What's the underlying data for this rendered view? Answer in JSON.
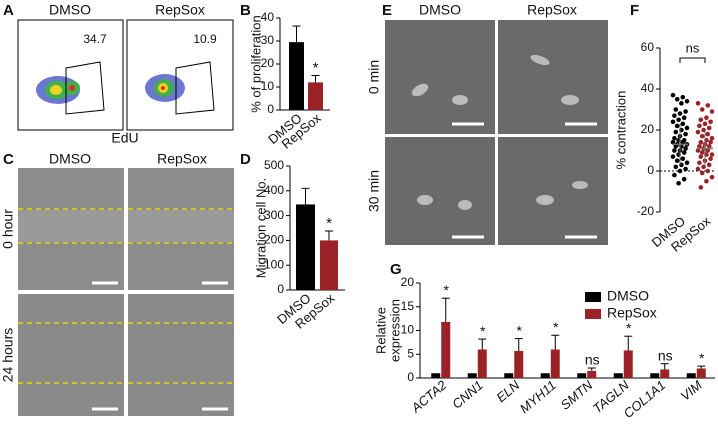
{
  "image_panels": {
    "A": {
      "label": "A",
      "columns": [
        "DMSO",
        "RepSox"
      ],
      "gate_values": [
        34.7,
        10.9
      ],
      "x_label": "EdU"
    },
    "C": {
      "label": "C",
      "columns": [
        "DMSO",
        "RepSox"
      ],
      "rows": [
        "0 hour",
        "24 hours"
      ]
    },
    "E": {
      "label": "E",
      "columns": [
        "DMSO",
        "RepSox"
      ],
      "rows": [
        "0 min",
        "30 min"
      ]
    }
  },
  "chart_data": [
    {
      "type": "bar",
      "label": "B",
      "categories": [
        "DMSO",
        "RepSox"
      ],
      "values": [
        29.5,
        12
      ],
      "errors": [
        7,
        3
      ],
      "colors": [
        "#000000",
        "#9b2226"
      ],
      "significance": [
        null,
        "*"
      ],
      "y_label": [
        "% of proliferation"
      ],
      "ylim": [
        0,
        40
      ],
      "yticks": [
        0,
        10,
        20,
        30,
        40
      ]
    },
    {
      "type": "bar",
      "label": "D",
      "categories": [
        "DMSO",
        "RepSox"
      ],
      "values": [
        345,
        200
      ],
      "errors": [
        65,
        38
      ],
      "colors": [
        "#000000",
        "#9b2226"
      ],
      "significance": [
        null,
        "*"
      ],
      "y_label": [
        "Migration cell No."
      ],
      "ylim": [
        0,
        500
      ],
      "yticks": [
        0,
        100,
        200,
        300,
        400,
        500
      ]
    },
    {
      "type": "strip",
      "label": "F",
      "categories": [
        "DMSO",
        "RepSox"
      ],
      "groups": [
        {
          "color": "#000000",
          "values": [
            37,
            36,
            35,
            34,
            33,
            30,
            29,
            28,
            27,
            26,
            25,
            24,
            23,
            22,
            21,
            20,
            19,
            18,
            17,
            16,
            15,
            15,
            14,
            14,
            13,
            13,
            12,
            12,
            11,
            10,
            10,
            9,
            8,
            7,
            6,
            5,
            4,
            3,
            2,
            1,
            0,
            -2,
            -4,
            -6
          ],
          "mean": 13,
          "error": 10
        },
        {
          "color": "#9b2226",
          "values": [
            33,
            32,
            30,
            29,
            26,
            25,
            24,
            23,
            22,
            21,
            20,
            19,
            18,
            17,
            16,
            15,
            14,
            14,
            13,
            12,
            12,
            11,
            10,
            10,
            9,
            8,
            8,
            7,
            6,
            5,
            4,
            3,
            2,
            1,
            0,
            -1,
            -3,
            -5,
            -8
          ],
          "mean": 11,
          "error": 8
        }
      ],
      "comparison": "ns",
      "zero_line": true,
      "y_label": [
        "% contraction"
      ],
      "ylim": [
        -20,
        60
      ],
      "yticks": [
        -20,
        0,
        20,
        40,
        60
      ]
    },
    {
      "type": "grouped_bar",
      "label": "G",
      "categories": [
        "ACTA2",
        "CNN1",
        "ELN",
        "MYH11",
        "SMTN",
        "TAGLN",
        "COL1A1",
        "VIM"
      ],
      "series": [
        {
          "name": "DMSO",
          "color": "#000000",
          "values": [
            1,
            1,
            1,
            1,
            1,
            1,
            1,
            1
          ]
        },
        {
          "name": "RepSox",
          "color": "#9b2226",
          "values": [
            11.8,
            6,
            5.7,
            6,
            1.5,
            5.8,
            1.8,
            2
          ],
          "errors": [
            5,
            2.2,
            2.6,
            3,
            0.6,
            3,
            1.2,
            0.5
          ]
        }
      ],
      "significance": [
        "*",
        "*",
        "*",
        "*",
        "ns",
        "*",
        "ns",
        "*"
      ],
      "y_label": [
        "Relative",
        "expression"
      ],
      "ylim": [
        0,
        20
      ],
      "yticks": [
        0,
        5,
        10,
        15,
        20
      ]
    }
  ]
}
